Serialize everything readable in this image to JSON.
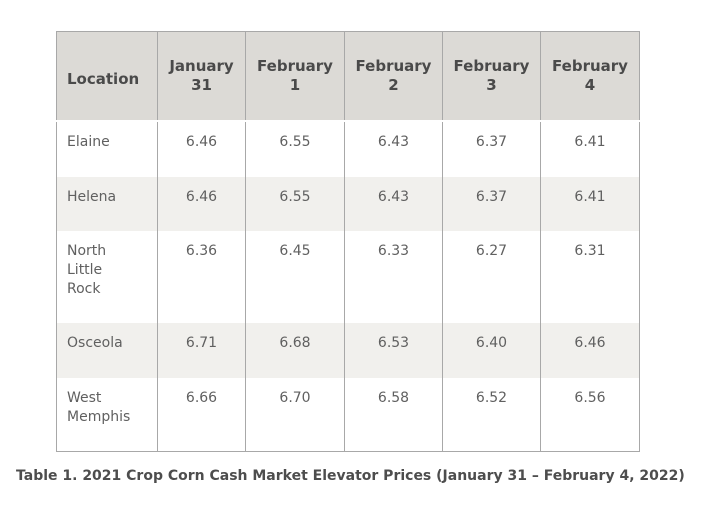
{
  "table": {
    "headers": [
      "Location",
      "January 31",
      "February 1",
      "February 2",
      "February 3",
      "February 4"
    ],
    "rows": [
      {
        "location": "Elaine",
        "values": [
          "6.46",
          "6.55",
          "6.43",
          "6.37",
          "6.41"
        ]
      },
      {
        "location": "Helena",
        "values": [
          "6.46",
          "6.55",
          "6.43",
          "6.37",
          "6.41"
        ]
      },
      {
        "location": "North Little Rock",
        "values": [
          "6.36",
          "6.45",
          "6.33",
          "6.27",
          "6.31"
        ]
      },
      {
        "location": "Osceola",
        "values": [
          "6.71",
          "6.68",
          "6.53",
          "6.40",
          "6.46"
        ]
      },
      {
        "location": "West Memphis",
        "values": [
          "6.66",
          "6.70",
          "6.58",
          "6.52",
          "6.56"
        ]
      }
    ]
  },
  "caption": "Table 1.  2021 Crop Corn Cash Market Elevator Prices (January 31 – February 4, 2022)",
  "colors": {
    "header_bg": "#dcdad6",
    "alt_row_bg": "#f1f0ed",
    "border": "#a8a8a8"
  }
}
